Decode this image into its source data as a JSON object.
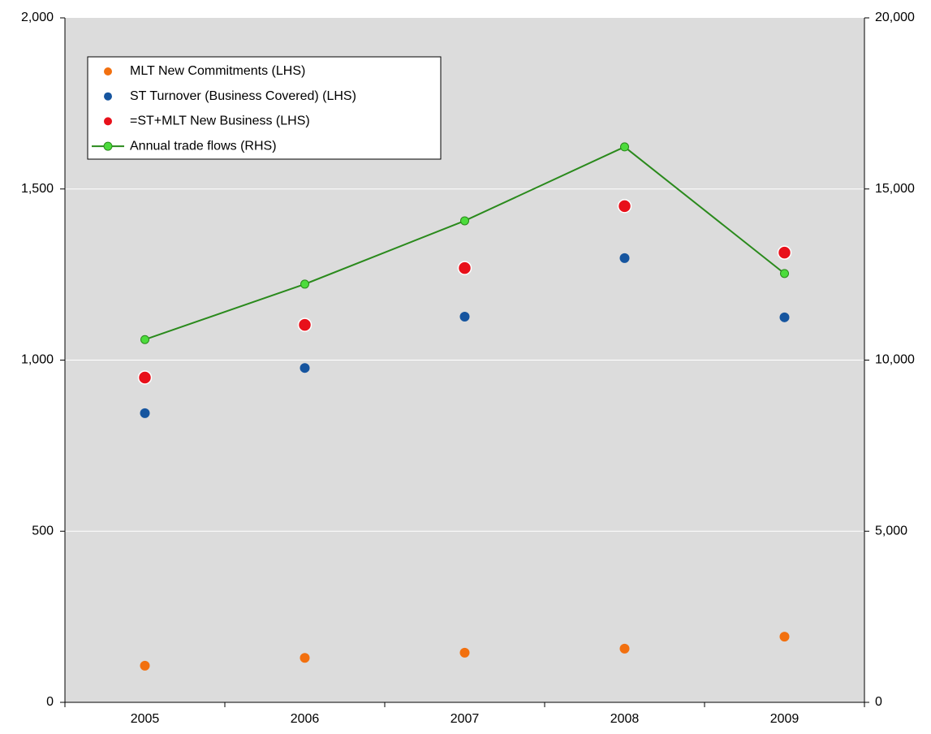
{
  "chart_data": {
    "type": "scatter",
    "categories": [
      "2005",
      "2006",
      "2007",
      "2008",
      "2009"
    ],
    "series": [
      {
        "name": "MLT New Commitments (LHS)",
        "type": "scatter",
        "color": "#f2700f",
        "values": [
          107,
          130,
          145,
          157,
          192
        ]
      },
      {
        "name": "ST Turnover (Business Covered)  (LHS)",
        "type": "scatter",
        "color": "#16559f",
        "values": [
          845,
          977,
          1127,
          1298,
          1125
        ]
      },
      {
        "name": "=ST+MLT New Business  (LHS)",
        "type": "scatter",
        "color": "#e8101a",
        "values": [
          949,
          1103,
          1269,
          1450,
          1314
        ]
      },
      {
        "name": "Annual trade flows  (RHS)",
        "type": "line",
        "axis": "y2",
        "color": "#2a8a1c",
        "marker_color": "#4cdc3c",
        "values": [
          10600,
          12220,
          14070,
          16230,
          12530
        ]
      }
    ],
    "ylim": [
      0,
      2000
    ],
    "yticks": [
      0,
      500,
      {
        "value": 1000,
        "label": "1,000"
      },
      {
        "value": 1500,
        "label": "1,500"
      },
      {
        "value": 2000,
        "label": "2,000"
      }
    ],
    "y2lim": [
      0,
      20000
    ],
    "y2ticks": [
      0,
      {
        "value": 5000,
        "label": "5,000"
      },
      {
        "value": 10000,
        "label": "10,000"
      },
      {
        "value": 15000,
        "label": "15,000"
      },
      {
        "value": 20000,
        "label": "20,000"
      }
    ],
    "grid": true,
    "legend": "upper left"
  }
}
